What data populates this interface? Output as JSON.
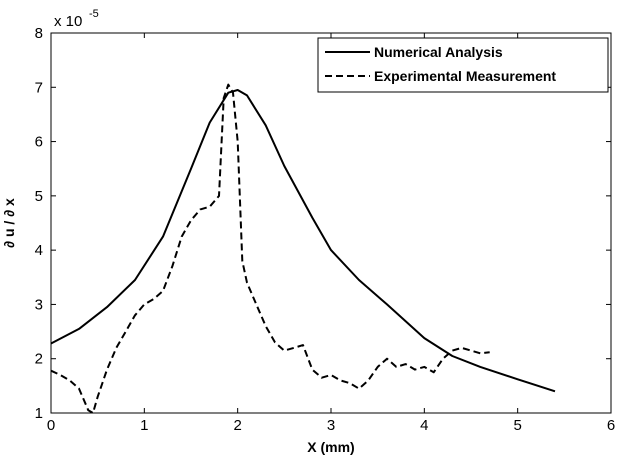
{
  "chart_data": {
    "type": "line",
    "title": "",
    "xlabel": "X (mm)",
    "ylabel": "∂ u / ∂ x",
    "y_scale_label": "x 10",
    "y_scale_exponent": "-5",
    "xlim": [
      0,
      6
    ],
    "ylim": [
      1,
      8
    ],
    "x_ticks": [
      0,
      1,
      2,
      3,
      4,
      5,
      6
    ],
    "y_ticks": [
      1,
      2,
      3,
      4,
      5,
      6,
      7,
      8
    ],
    "x_tick_labels": [
      "0",
      "1",
      "2",
      "3",
      "4",
      "5",
      "6"
    ],
    "y_tick_labels": [
      "1",
      "2",
      "3",
      "4",
      "5",
      "6",
      "7",
      "8"
    ],
    "grid": false,
    "legend_position": "top-right",
    "series": [
      {
        "name": "Numerical Analysis",
        "style": "solid",
        "color": "#000000",
        "x": [
          0,
          0.3,
          0.6,
          0.9,
          1.2,
          1.5,
          1.7,
          1.9,
          2.0,
          2.1,
          2.3,
          2.5,
          2.8,
          3.0,
          3.3,
          3.6,
          4.0,
          4.3,
          4.6,
          5.0,
          5.4
        ],
        "y": [
          2.28,
          2.55,
          2.95,
          3.45,
          4.25,
          5.5,
          6.35,
          6.9,
          6.95,
          6.85,
          6.3,
          5.55,
          4.6,
          4.0,
          3.45,
          3.0,
          2.38,
          2.05,
          1.85,
          1.62,
          1.4
        ]
      },
      {
        "name": "Experimental Measurement",
        "style": "dashed",
        "color": "#000000",
        "x": [
          0,
          0.1,
          0.2,
          0.3,
          0.4,
          0.45,
          0.5,
          0.6,
          0.7,
          0.8,
          0.9,
          1.0,
          1.1,
          1.2,
          1.3,
          1.4,
          1.5,
          1.6,
          1.7,
          1.8,
          1.85,
          1.9,
          1.95,
          2.0,
          2.05,
          2.1,
          2.2,
          2.3,
          2.4,
          2.5,
          2.6,
          2.7,
          2.8,
          2.9,
          3.0,
          3.1,
          3.2,
          3.3,
          3.4,
          3.5,
          3.6,
          3.7,
          3.8,
          3.9,
          4.0,
          4.1,
          4.2,
          4.3,
          4.4,
          4.5,
          4.6,
          4.7
        ],
        "y": [
          1.78,
          1.7,
          1.6,
          1.45,
          1.05,
          1.0,
          1.3,
          1.8,
          2.2,
          2.5,
          2.8,
          3.0,
          3.1,
          3.25,
          3.7,
          4.25,
          4.55,
          4.75,
          4.8,
          5.0,
          6.8,
          7.05,
          6.9,
          6.0,
          3.8,
          3.4,
          3.0,
          2.6,
          2.3,
          2.15,
          2.2,
          2.25,
          1.8,
          1.65,
          1.7,
          1.6,
          1.55,
          1.45,
          1.6,
          1.85,
          2.0,
          1.85,
          1.9,
          1.8,
          1.85,
          1.75,
          2.0,
          2.15,
          2.2,
          2.15,
          2.1,
          2.12
        ]
      }
    ]
  }
}
